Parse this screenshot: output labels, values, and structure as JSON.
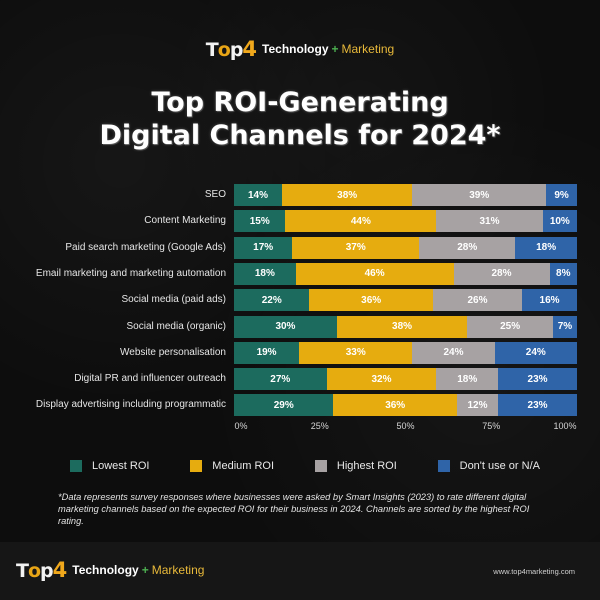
{
  "brand": {
    "logo_text": "Top4",
    "tagline_part1": "Technology",
    "tagline_plus": "+",
    "tagline_part2": "Marketing",
    "url": "www.top4marketing.com"
  },
  "title_line1": "Top ROI-Generating",
  "title_line2": "Digital Channels for 2024*",
  "footnote": "*Data represents survey responses where businesses were asked by Smart Insights (2023) to rate different digital marketing channels based on the expected ROI for their business in 2024. Channels are sorted by the highest ROI rating.",
  "colors": {
    "lowest": "#1c6b5e",
    "medium": "#e6ac0f",
    "highest": "#a7a2a3",
    "na": "#2f64a8"
  },
  "chart_data": {
    "type": "bar",
    "orientation": "horizontal",
    "stacked": true,
    "title": "Top ROI-Generating Digital Channels for 2024*",
    "xlabel": "",
    "ylabel": "",
    "xlim": [
      0,
      100
    ],
    "x_ticks": [
      "0%",
      "25%",
      "50%",
      "75%",
      "100%"
    ],
    "legend_position": "bottom",
    "grid": false,
    "categories": [
      "SEO",
      "Content Marketing",
      "Paid search marketing (Google Ads)",
      "Email marketing and marketing automation",
      "Social media (paid ads)",
      "Social media (organic)",
      "Website personalisation",
      "Digital PR and influencer outreach",
      "Display advertising including programmatic"
    ],
    "series": [
      {
        "name": "Lowest ROI",
        "key": "lowest",
        "values": [
          14,
          15,
          17,
          18,
          22,
          30,
          19,
          27,
          29
        ]
      },
      {
        "name": "Medium ROI",
        "key": "medium",
        "values": [
          38,
          44,
          37,
          46,
          36,
          38,
          33,
          32,
          36
        ]
      },
      {
        "name": "Highest ROI",
        "key": "highest",
        "values": [
          39,
          31,
          28,
          28,
          26,
          25,
          24,
          18,
          12
        ]
      },
      {
        "name": "Don't use or N/A",
        "key": "na",
        "values": [
          9,
          10,
          18,
          8,
          16,
          7,
          24,
          23,
          23
        ]
      }
    ],
    "value_suffix": "%"
  }
}
